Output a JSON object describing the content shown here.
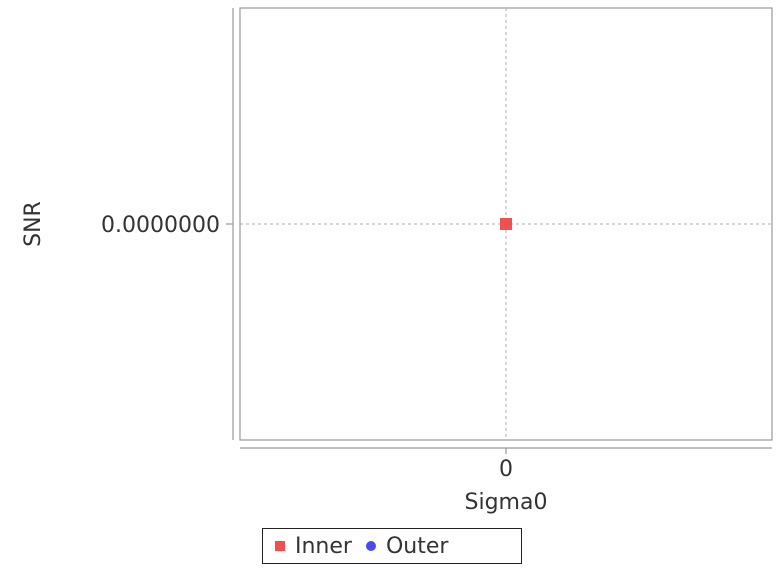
{
  "chart_data": {
    "type": "scatter",
    "title": "",
    "xlabel": "Sigma0",
    "ylabel": "SNR",
    "x_ticks": [
      "0"
    ],
    "y_ticks": [
      "0.0000000"
    ],
    "grid": true,
    "legend_position": "bottom",
    "series": [
      {
        "name": "Inner",
        "marker": "square",
        "color": "#f05050",
        "points": [
          {
            "x": 0,
            "y": 0
          }
        ]
      },
      {
        "name": "Outer",
        "marker": "circle",
        "color": "#4a4af0",
        "points": []
      }
    ]
  }
}
